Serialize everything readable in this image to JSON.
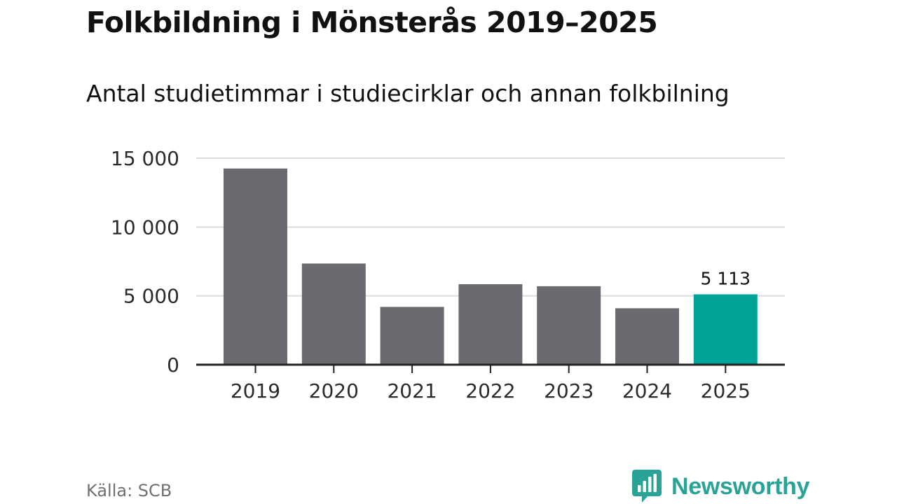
{
  "header": {
    "title": "Folkbildning i Mönsterås 2019–2025",
    "subtitle": "Antal studietimmar i studiecirklar och annan folkbilning"
  },
  "chart_data": {
    "type": "bar",
    "title": "Folkbildning i Mönsterås 2019–2025",
    "subtitle": "Antal studietimmar i studiecirklar och annan folkbilning",
    "categories": [
      "2019",
      "2020",
      "2021",
      "2022",
      "2023",
      "2024",
      "2025"
    ],
    "values": [
      14250,
      7350,
      4200,
      5850,
      5700,
      4100,
      5113
    ],
    "ylim": [
      0,
      15000
    ],
    "yticks": [
      0,
      5000,
      10000,
      15000
    ],
    "ytick_labels": [
      "0",
      "5 000",
      "10 000",
      "15 000"
    ],
    "xlabel": "",
    "ylabel": "",
    "grid": true,
    "highlight_index": 6,
    "highlight_label": "5 113",
    "colors": {
      "bar": "#6b6a70",
      "highlight": "#00a398",
      "grid": "#dcdcdc",
      "axis": "#222222"
    }
  },
  "footer": {
    "source": "Källa: SCB",
    "brand": "Newsworthy",
    "brand_icon": "newsworthy-logo-icon",
    "brand_color": "#2aa397"
  }
}
